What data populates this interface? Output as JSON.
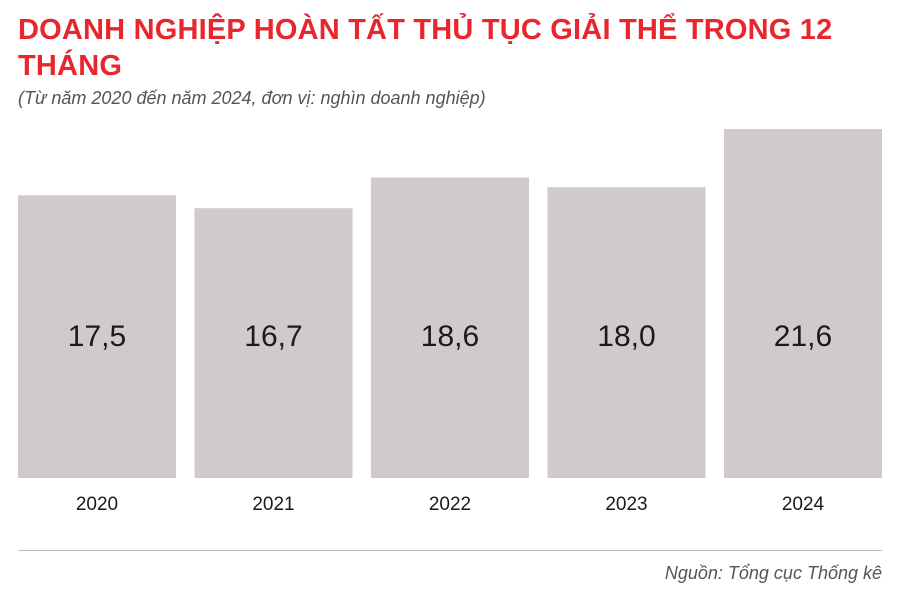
{
  "header": {
    "title": "DOANH NGHIỆP HOÀN TẤT THỦ TỤC GIẢI THỂ TRONG 12 THÁNG",
    "subtitle": "(Từ năm 2020 đến năm 2024, đơn vị: nghìn doanh nghiệp)"
  },
  "footer": {
    "source": "Nguồn: Tổng cục Thống kê"
  },
  "colors": {
    "title": "#e8262d",
    "bar": "#cfcbcd"
  },
  "chart_data": {
    "type": "bar",
    "title": "DOANH NGHIỆP HOÀN TẤT THỦ TỤC GIẢI THỂ TRONG 12 THÁNG",
    "subtitle": "(Từ năm 2020 đến năm 2024, đơn vị: nghìn doanh nghiệp)",
    "categories": [
      "2020",
      "2021",
      "2022",
      "2023",
      "2024"
    ],
    "values": [
      17.5,
      16.7,
      18.6,
      18.0,
      21.6
    ],
    "value_labels": [
      "17,5",
      "16,7",
      "18,6",
      "18,0",
      "21,6"
    ],
    "xlabel": "",
    "ylabel": "",
    "grid": false,
    "legend": "none"
  }
}
